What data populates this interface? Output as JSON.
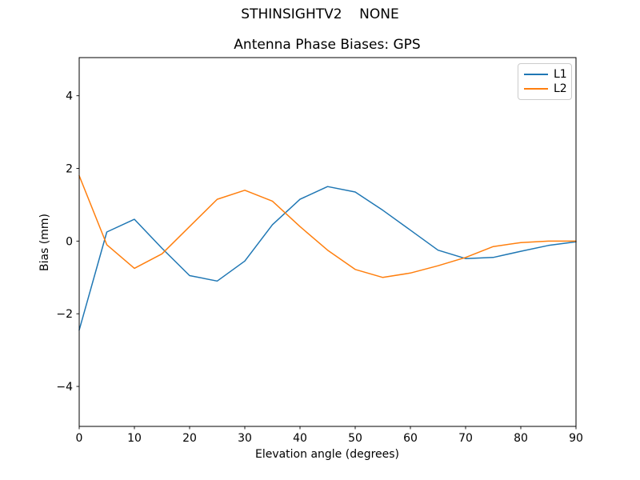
{
  "figure": {
    "suptitle": "STHINSIGHTV2    NONE",
    "background": "#ffffff",
    "text_color": "#000000"
  },
  "chart_data": {
    "type": "line",
    "title": "Antenna Phase Biases: GPS",
    "xlabel": "Elevation angle (degrees)",
    "ylabel": "Bias (mm)",
    "xlim": [
      0,
      90
    ],
    "ylim": [
      -5.1,
      5.05
    ],
    "xticks": [
      0,
      10,
      20,
      30,
      40,
      50,
      60,
      70,
      80,
      90
    ],
    "yticks": [
      -4,
      -2,
      0,
      2,
      4
    ],
    "grid": false,
    "legend_position": "upper right",
    "x": [
      0,
      5,
      10,
      15,
      20,
      25,
      30,
      35,
      40,
      45,
      50,
      55,
      60,
      65,
      70,
      75,
      80,
      85,
      90
    ],
    "series": [
      {
        "name": "L1",
        "color": "#1f77b4",
        "values": [
          -2.45,
          0.25,
          0.6,
          -0.2,
          -0.95,
          -1.1,
          -0.55,
          0.45,
          1.15,
          1.5,
          1.35,
          0.85,
          0.3,
          -0.25,
          -0.48,
          -0.45,
          -0.28,
          -0.12,
          -0.02
        ]
      },
      {
        "name": "L2",
        "color": "#ff7f0e",
        "values": [
          1.8,
          -0.1,
          -0.75,
          -0.35,
          0.4,
          1.15,
          1.4,
          1.1,
          0.4,
          -0.25,
          -0.78,
          -1.0,
          -0.88,
          -0.68,
          -0.45,
          -0.15,
          -0.04,
          0.0,
          0.0
        ]
      }
    ]
  }
}
